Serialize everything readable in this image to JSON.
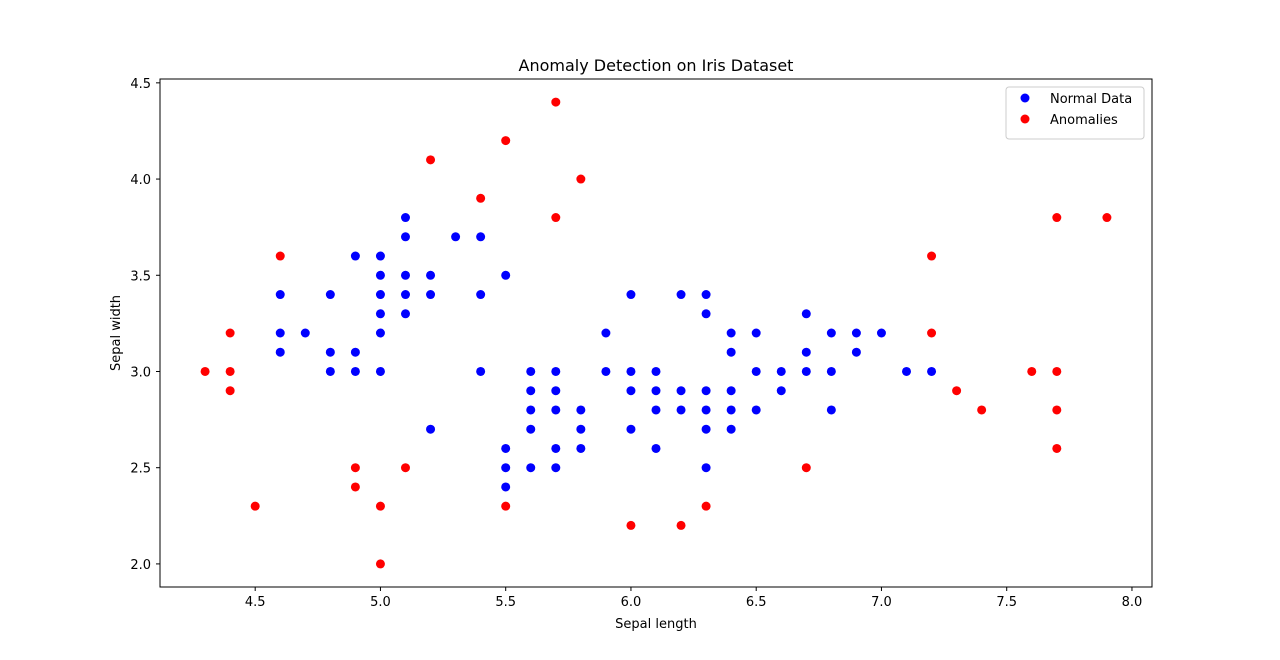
{
  "chart_data": {
    "type": "scatter",
    "title": "Anomaly Detection on Iris Dataset",
    "xlabel": "Sepal length",
    "ylabel": "Sepal width",
    "xlim": [
      4.12,
      8.08
    ],
    "ylim": [
      1.88,
      4.52
    ],
    "xticks": [
      "4.5",
      "5.0",
      "5.5",
      "6.0",
      "6.5",
      "7.0",
      "7.5",
      "8.0"
    ],
    "yticks": [
      "2.0",
      "2.5",
      "3.0",
      "3.5",
      "4.0",
      "4.5"
    ],
    "grid": false,
    "legend_position": "top-right",
    "series": [
      {
        "name": "Normal Data",
        "color": "#0000ff",
        "points": [
          [
            4.6,
            3.4
          ],
          [
            4.6,
            3.2
          ],
          [
            4.6,
            3.1
          ],
          [
            4.7,
            3.2
          ],
          [
            4.8,
            3.4
          ],
          [
            4.8,
            3.1
          ],
          [
            4.8,
            3.0
          ],
          [
            4.9,
            3.6
          ],
          [
            4.9,
            3.1
          ],
          [
            4.9,
            3.0
          ],
          [
            5.0,
            3.6
          ],
          [
            5.0,
            3.5
          ],
          [
            5.0,
            3.4
          ],
          [
            5.0,
            3.3
          ],
          [
            5.0,
            3.2
          ],
          [
            5.0,
            3.0
          ],
          [
            5.1,
            3.8
          ],
          [
            5.1,
            3.7
          ],
          [
            5.1,
            3.5
          ],
          [
            5.1,
            3.4
          ],
          [
            5.1,
            3.3
          ],
          [
            5.2,
            3.5
          ],
          [
            5.2,
            3.4
          ],
          [
            5.2,
            2.7
          ],
          [
            5.3,
            3.7
          ],
          [
            5.4,
            3.7
          ],
          [
            5.4,
            3.4
          ],
          [
            5.4,
            3.0
          ],
          [
            5.5,
            3.5
          ],
          [
            5.5,
            2.6
          ],
          [
            5.5,
            2.5
          ],
          [
            5.5,
            2.4
          ],
          [
            5.6,
            3.0
          ],
          [
            5.6,
            2.9
          ],
          [
            5.6,
            2.8
          ],
          [
            5.6,
            2.7
          ],
          [
            5.6,
            2.5
          ],
          [
            5.7,
            3.0
          ],
          [
            5.7,
            2.9
          ],
          [
            5.7,
            2.8
          ],
          [
            5.7,
            2.6
          ],
          [
            5.7,
            2.5
          ],
          [
            5.8,
            2.8
          ],
          [
            5.8,
            2.7
          ],
          [
            5.8,
            2.6
          ],
          [
            5.9,
            3.2
          ],
          [
            5.9,
            3.0
          ],
          [
            6.0,
            3.4
          ],
          [
            6.0,
            3.0
          ],
          [
            6.0,
            2.9
          ],
          [
            6.0,
            2.7
          ],
          [
            6.1,
            3.0
          ],
          [
            6.1,
            2.9
          ],
          [
            6.1,
            2.8
          ],
          [
            6.1,
            2.6
          ],
          [
            6.2,
            3.4
          ],
          [
            6.2,
            2.9
          ],
          [
            6.2,
            2.8
          ],
          [
            6.3,
            3.4
          ],
          [
            6.3,
            3.3
          ],
          [
            6.3,
            2.9
          ],
          [
            6.3,
            2.8
          ],
          [
            6.3,
            2.7
          ],
          [
            6.3,
            2.5
          ],
          [
            6.4,
            3.2
          ],
          [
            6.4,
            3.1
          ],
          [
            6.4,
            2.9
          ],
          [
            6.4,
            2.8
          ],
          [
            6.4,
            2.7
          ],
          [
            6.5,
            3.2
          ],
          [
            6.5,
            3.0
          ],
          [
            6.5,
            2.8
          ],
          [
            6.6,
            3.0
          ],
          [
            6.6,
            2.9
          ],
          [
            6.7,
            3.3
          ],
          [
            6.7,
            3.1
          ],
          [
            6.7,
            3.0
          ],
          [
            6.8,
            3.2
          ],
          [
            6.8,
            3.0
          ],
          [
            6.8,
            2.8
          ],
          [
            6.9,
            3.2
          ],
          [
            6.9,
            3.1
          ],
          [
            7.0,
            3.2
          ],
          [
            7.1,
            3.0
          ],
          [
            7.2,
            3.0
          ]
        ]
      },
      {
        "name": "Anomalies",
        "color": "#ff0000",
        "points": [
          [
            4.3,
            3.0
          ],
          [
            4.4,
            3.2
          ],
          [
            4.4,
            3.0
          ],
          [
            4.4,
            2.9
          ],
          [
            4.5,
            2.3
          ],
          [
            4.6,
            3.6
          ],
          [
            4.9,
            2.5
          ],
          [
            4.9,
            2.4
          ],
          [
            5.0,
            2.3
          ],
          [
            5.0,
            2.0
          ],
          [
            5.1,
            2.5
          ],
          [
            5.2,
            4.1
          ],
          [
            5.4,
            3.9
          ],
          [
            5.5,
            4.2
          ],
          [
            5.5,
            2.3
          ],
          [
            5.7,
            4.4
          ],
          [
            5.7,
            3.8
          ],
          [
            5.8,
            4.0
          ],
          [
            6.0,
            2.2
          ],
          [
            6.2,
            2.2
          ],
          [
            6.3,
            2.3
          ],
          [
            6.7,
            2.5
          ],
          [
            7.2,
            3.6
          ],
          [
            7.2,
            3.2
          ],
          [
            7.3,
            2.9
          ],
          [
            7.4,
            2.8
          ],
          [
            7.6,
            3.0
          ],
          [
            7.7,
            3.8
          ],
          [
            7.7,
            3.0
          ],
          [
            7.7,
            2.8
          ],
          [
            7.7,
            2.6
          ],
          [
            7.9,
            3.8
          ]
        ]
      }
    ]
  }
}
